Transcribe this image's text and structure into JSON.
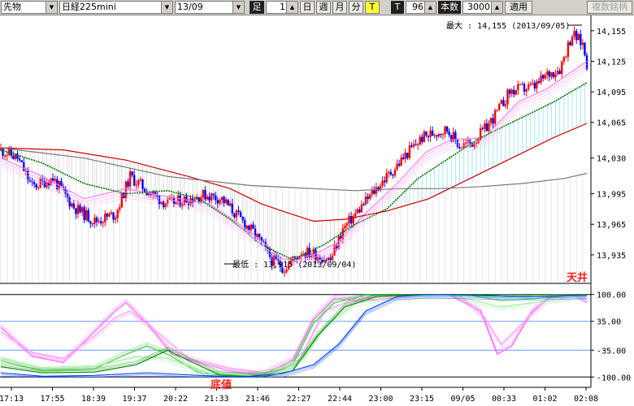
{
  "toolbar": {
    "market": "先物",
    "product": "日経225mini",
    "contract": "13/09",
    "ashi_label": "足",
    "interval": "1",
    "btn_day": "日",
    "btn_week": "週",
    "btn_month": "月",
    "btn_minute": "分",
    "btn_t": "T",
    "t_label": "T",
    "t_value": "96",
    "count_label": "本数",
    "count_value": "3000",
    "apply": "適用",
    "compare": "複数銘柄"
  },
  "colors": {
    "up": "#ff0000",
    "down": "#0000ff",
    "ma_short": "#ff77ff",
    "ma_mid": "#007700",
    "ma_long": "#cc0000",
    "ma_longest": "#777777",
    "cloud": "#a8e8f0"
  },
  "chart_data": [
    {
      "type": "candlestick",
      "annotations": {
        "max": "最大 : 14,155 (2013/09/05)",
        "min": "最低 : 13,915 (2013/09/04)"
      },
      "y_ticks": [
        "14,155",
        "14,125",
        "14,095",
        "14,065",
        "14,030",
        "13,995",
        "13,965",
        "13,935"
      ],
      "y_tick_values": [
        14155,
        14125,
        14095,
        14065,
        14030,
        13995,
        13965,
        13935
      ],
      "ylim": [
        13907,
        14170
      ],
      "x_ticks": [
        "17:13",
        "17:55",
        "18:39",
        "19:37",
        "20:22",
        "21:33",
        "21:46",
        "22:27",
        "22:44",
        "23:00",
        "23:15",
        "09/05",
        "00:33",
        "01:02",
        "02:08"
      ],
      "close_path": [
        [
          0,
          14038
        ],
        [
          8,
          14030
        ],
        [
          15,
          14002
        ],
        [
          25,
          14010
        ],
        [
          35,
          13982
        ],
        [
          45,
          13968
        ],
        [
          55,
          13975
        ],
        [
          62,
          14012
        ],
        [
          72,
          13995
        ],
        [
          80,
          13985
        ],
        [
          90,
          13990
        ],
        [
          98,
          13994
        ],
        [
          106,
          13990
        ],
        [
          113,
          13974
        ],
        [
          122,
          13955
        ],
        [
          130,
          13930
        ],
        [
          136,
          13922
        ],
        [
          144,
          13938
        ],
        [
          150,
          13936
        ],
        [
          158,
          13930
        ],
        [
          164,
          13960
        ],
        [
          170,
          13975
        ],
        [
          176,
          13990
        ],
        [
          182,
          14005
        ],
        [
          188,
          14018
        ],
        [
          195,
          14035
        ],
        [
          202,
          14050
        ],
        [
          208,
          14055
        ],
        [
          214,
          14058
        ],
        [
          220,
          14042
        ],
        [
          226,
          14045
        ],
        [
          232,
          14058
        ],
        [
          238,
          14075
        ],
        [
          244,
          14095
        ],
        [
          250,
          14098
        ],
        [
          256,
          14100
        ],
        [
          262,
          14112
        ],
        [
          268,
          14118
        ],
        [
          274,
          14152
        ],
        [
          279,
          14142
        ],
        [
          281,
          14122
        ]
      ],
      "ma_short": [
        [
          0,
          14030
        ],
        [
          20,
          14012
        ],
        [
          40,
          13990
        ],
        [
          60,
          14000
        ],
        [
          80,
          13992
        ],
        [
          100,
          13985
        ],
        [
          118,
          13960
        ],
        [
          136,
          13930
        ],
        [
          150,
          13935
        ],
        [
          162,
          13948
        ],
        [
          176,
          13978
        ],
        [
          190,
          14005
        ],
        [
          204,
          14036
        ],
        [
          216,
          14048
        ],
        [
          232,
          14050
        ],
        [
          248,
          14085
        ],
        [
          262,
          14098
        ],
        [
          281,
          14125
        ]
      ],
      "ma_mid": [
        [
          0,
          14038
        ],
        [
          20,
          14025
        ],
        [
          40,
          14005
        ],
        [
          60,
          13995
        ],
        [
          80,
          13998
        ],
        [
          95,
          13990
        ],
        [
          110,
          13970
        ],
        [
          125,
          13945
        ],
        [
          140,
          13930
        ],
        [
          155,
          13945
        ],
        [
          170,
          13965
        ],
        [
          185,
          13980
        ],
        [
          200,
          14010
        ],
        [
          215,
          14030
        ],
        [
          230,
          14050
        ],
        [
          250,
          14070
        ],
        [
          265,
          14085
        ],
        [
          281,
          14104
        ]
      ],
      "ma_long": [
        [
          0,
          14040
        ],
        [
          30,
          14038
        ],
        [
          60,
          14028
        ],
        [
          90,
          14012
        ],
        [
          110,
          14000
        ],
        [
          125,
          13985
        ],
        [
          135,
          13978
        ],
        [
          150,
          13968
        ],
        [
          165,
          13970
        ],
        [
          185,
          13978
        ],
        [
          205,
          13990
        ],
        [
          225,
          14010
        ],
        [
          245,
          14030
        ],
        [
          265,
          14050
        ],
        [
          281,
          14064
        ]
      ],
      "ma_longest": [
        [
          0,
          14040
        ],
        [
          40,
          14030
        ],
        [
          80,
          14012
        ],
        [
          120,
          14003
        ],
        [
          150,
          14000
        ],
        [
          170,
          13998
        ],
        [
          190,
          14000
        ],
        [
          210,
          14000
        ],
        [
          230,
          14002
        ],
        [
          250,
          14005
        ],
        [
          270,
          14010
        ],
        [
          281,
          14015
        ]
      ]
    },
    {
      "type": "line",
      "y_ticks": [
        "100.00",
        "35.00",
        "-35.00",
        "-100.00"
      ],
      "y_tick_values": [
        100,
        35,
        -35,
        -100
      ],
      "ylim": [
        -125,
        125
      ],
      "labels": {
        "top": "天井",
        "bottom": "底値"
      },
      "series": [
        {
          "color": "#ff66ff",
          "points": [
            [
              0,
              20
            ],
            [
              15,
              -50
            ],
            [
              30,
              -65
            ],
            [
              45,
              10
            ],
            [
              55,
              60
            ],
            [
              60,
              80
            ],
            [
              70,
              30
            ],
            [
              82,
              -45
            ],
            [
              95,
              -65
            ],
            [
              110,
              -85
            ],
            [
              125,
              -95
            ],
            [
              140,
              -60
            ],
            [
              150,
              40
            ],
            [
              160,
              90
            ],
            [
              170,
              85
            ],
            [
              185,
              90
            ],
            [
              200,
              98
            ],
            [
              215,
              99
            ],
            [
              230,
              60
            ],
            [
              238,
              -45
            ],
            [
              245,
              -25
            ],
            [
              255,
              60
            ],
            [
              265,
              99
            ],
            [
              275,
              97
            ],
            [
              281,
              80
            ]
          ]
        },
        {
          "color": "#ff99ff",
          "points": [
            [
              0,
              10
            ],
            [
              15,
              -40
            ],
            [
              30,
              -55
            ],
            [
              45,
              0
            ],
            [
              55,
              45
            ],
            [
              62,
              60
            ],
            [
              75,
              10
            ],
            [
              90,
              -55
            ],
            [
              110,
              -80
            ],
            [
              130,
              -92
            ],
            [
              145,
              -40
            ],
            [
              155,
              60
            ],
            [
              170,
              90
            ],
            [
              185,
              95
            ],
            [
              200,
              99
            ],
            [
              220,
              98
            ],
            [
              232,
              45
            ],
            [
              240,
              -20
            ],
            [
              250,
              30
            ],
            [
              262,
              90
            ],
            [
              275,
              98
            ],
            [
              281,
              90
            ]
          ]
        },
        {
          "color": "#44cc44",
          "points": [
            [
              0,
              -60
            ],
            [
              20,
              -85
            ],
            [
              45,
              -80
            ],
            [
              60,
              -45
            ],
            [
              70,
              -25
            ],
            [
              80,
              -45
            ],
            [
              95,
              -90
            ],
            [
              115,
              -100
            ],
            [
              130,
              -90
            ],
            [
              140,
              -70
            ],
            [
              150,
              30
            ],
            [
              160,
              80
            ],
            [
              175,
              98
            ],
            [
              200,
              100
            ],
            [
              225,
              98
            ],
            [
              240,
              85
            ],
            [
              255,
              90
            ],
            [
              270,
              96
            ],
            [
              281,
              98
            ]
          ]
        },
        {
          "color": "#99ee99",
          "points": [
            [
              0,
              -55
            ],
            [
              20,
              -80
            ],
            [
              45,
              -75
            ],
            [
              65,
              -50
            ],
            [
              80,
              -55
            ],
            [
              100,
              -92
            ],
            [
              125,
              -98
            ],
            [
              145,
              -55
            ],
            [
              155,
              20
            ],
            [
              170,
              80
            ],
            [
              190,
              95
            ],
            [
              215,
              99
            ],
            [
              240,
              70
            ],
            [
              255,
              80
            ],
            [
              270,
              92
            ],
            [
              281,
              96
            ]
          ]
        },
        {
          "color": "#008800",
          "points": [
            [
              0,
              -75
            ],
            [
              20,
              -90
            ],
            [
              45,
              -88
            ],
            [
              65,
              -70
            ],
            [
              80,
              -35
            ],
            [
              90,
              -60
            ],
            [
              105,
              -95
            ],
            [
              125,
              -100
            ],
            [
              140,
              -85
            ],
            [
              152,
              0
            ],
            [
              165,
              70
            ],
            [
              180,
              95
            ],
            [
              200,
              100
            ],
            [
              230,
              99
            ],
            [
              245,
              95
            ],
            [
              260,
              95
            ],
            [
              281,
              99
            ]
          ]
        },
        {
          "color": "#0044ff",
          "points": [
            [
              0,
              -90
            ],
            [
              20,
              -98
            ],
            [
              45,
              -96
            ],
            [
              70,
              -90
            ],
            [
              95,
              -96
            ],
            [
              115,
              -100
            ],
            [
              135,
              -92
            ],
            [
              150,
              -70
            ],
            [
              162,
              -20
            ],
            [
              175,
              60
            ],
            [
              190,
              95
            ],
            [
              205,
              100
            ],
            [
              230,
              97
            ],
            [
              255,
              95
            ],
            [
              281,
              98
            ]
          ]
        }
      ]
    }
  ]
}
